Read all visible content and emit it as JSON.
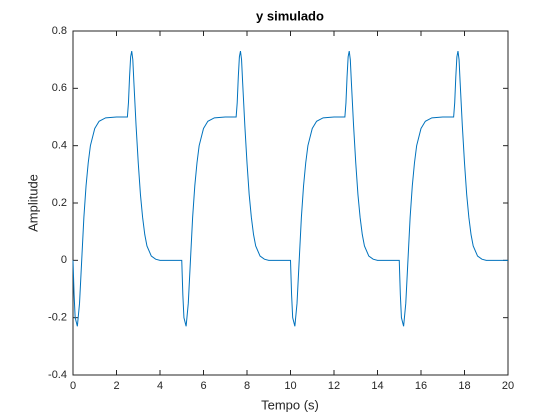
{
  "chart_data": {
    "type": "line",
    "title": "y simulado",
    "x_label": "Tempo (s)",
    "y_label": "Amplitude",
    "x": [
      0,
      0.05,
      0.1,
      0.2,
      0.3,
      0.4,
      0.5,
      0.6,
      0.7,
      0.8,
      1.0,
      1.2,
      1.5,
      2.0,
      2.5,
      2.55,
      2.6,
      2.65,
      2.7,
      2.75,
      2.8,
      2.9,
      3.0,
      3.1,
      3.2,
      3.3,
      3.4,
      3.6,
      3.8,
      4.0,
      5,
      5.05,
      5.1,
      5.2,
      5.3,
      5.4,
      5.5,
      5.6,
      5.7,
      5.8,
      6.0,
      6.2,
      6.5,
      7.0,
      7.5,
      7.55,
      7.6,
      7.65,
      7.7,
      7.75,
      7.8,
      7.9,
      8.0,
      8.1,
      8.2,
      8.3,
      8.4,
      8.6,
      8.8,
      9.0,
      10,
      10.05,
      10.1,
      10.2,
      10.3,
      10.4,
      10.5,
      10.6,
      10.7,
      10.8,
      11.0,
      11.2,
      11.5,
      12.0,
      12.5,
      12.55,
      12.6,
      12.65,
      12.7,
      12.75,
      12.8,
      12.9,
      13.0,
      13.1,
      13.2,
      13.3,
      13.4,
      13.6,
      13.8,
      14.0,
      15,
      15.05,
      15.1,
      15.2,
      15.3,
      15.4,
      15.5,
      15.6,
      15.7,
      15.8,
      16.0,
      16.2,
      16.5,
      17.0,
      17.5,
      17.55,
      17.6,
      17.65,
      17.7,
      17.75,
      17.8,
      17.9,
      18.0,
      18.1,
      18.2,
      18.3,
      18.4,
      18.6,
      18.8,
      19.0,
      20
    ],
    "series": [
      {
        "color": "#0072bd",
        "values": [
          0,
          -0.12,
          -0.2,
          -0.23,
          -0.15,
          0.0,
          0.15,
          0.26,
          0.34,
          0.4,
          0.46,
          0.485,
          0.497,
          0.5,
          0.5,
          0.55,
          0.64,
          0.71,
          0.73,
          0.7,
          0.62,
          0.47,
          0.34,
          0.23,
          0.15,
          0.09,
          0.05,
          0.015,
          0.004,
          0,
          0,
          -0.12,
          -0.2,
          -0.23,
          -0.15,
          0.0,
          0.15,
          0.26,
          0.34,
          0.4,
          0.46,
          0.485,
          0.497,
          0.5,
          0.5,
          0.55,
          0.64,
          0.71,
          0.73,
          0.7,
          0.62,
          0.47,
          0.34,
          0.23,
          0.15,
          0.09,
          0.05,
          0.015,
          0.004,
          0,
          0,
          -0.12,
          -0.2,
          -0.23,
          -0.15,
          0.0,
          0.15,
          0.26,
          0.34,
          0.4,
          0.46,
          0.485,
          0.497,
          0.5,
          0.5,
          0.55,
          0.64,
          0.71,
          0.73,
          0.7,
          0.62,
          0.47,
          0.34,
          0.23,
          0.15,
          0.09,
          0.05,
          0.015,
          0.004,
          0,
          0,
          -0.12,
          -0.2,
          -0.23,
          -0.15,
          0.0,
          0.15,
          0.26,
          0.34,
          0.4,
          0.46,
          0.485,
          0.497,
          0.5,
          0.5,
          0.55,
          0.64,
          0.71,
          0.73,
          0.7,
          0.62,
          0.47,
          0.34,
          0.23,
          0.15,
          0.09,
          0.05,
          0.015,
          0.004,
          0,
          0
        ]
      }
    ],
    "xlim": [
      0,
      20
    ],
    "xticks": [
      0,
      2,
      4,
      6,
      8,
      10,
      12,
      14,
      16,
      18,
      20
    ],
    "ylim": [
      -0.4,
      0.8
    ],
    "yticks": [
      -0.4,
      -0.2,
      0,
      0.2,
      0.4,
      0.6,
      0.8
    ]
  }
}
